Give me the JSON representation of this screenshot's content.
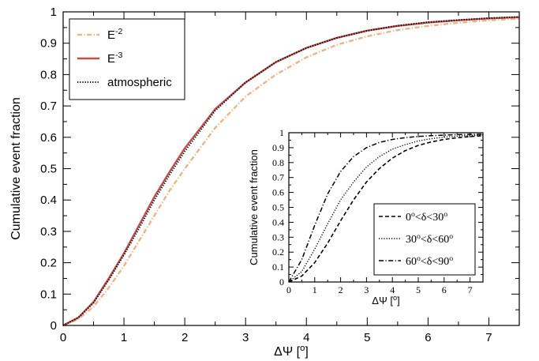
{
  "chart_data": [
    {
      "type": "line",
      "xlabel": "ΔΨ [o]",
      "ylabel": "Cumulative event fraction",
      "xlim": [
        0,
        7.5
      ],
      "ylim": [
        0,
        1
      ],
      "xticks": [
        "0",
        "1",
        "2",
        "3",
        "4",
        "5",
        "6",
        "7"
      ],
      "yticks": [
        "0",
        "0.1",
        "0.2",
        "0.3",
        "0.4",
        "0.5",
        "0.6",
        "0.7",
        "0.8",
        "0.9",
        "1"
      ],
      "legend_position": "top-left",
      "series": [
        {
          "name": "E-2",
          "style": "dash-dot",
          "color": "#e8b48a",
          "x": [
            0,
            0.25,
            0.5,
            0.75,
            1,
            1.25,
            1.5,
            1.75,
            2,
            2.5,
            3,
            3.5,
            4,
            4.5,
            5,
            5.5,
            6,
            6.5,
            7,
            7.5
          ],
          "y": [
            0,
            0.02,
            0.06,
            0.12,
            0.19,
            0.27,
            0.35,
            0.43,
            0.5,
            0.63,
            0.73,
            0.8,
            0.855,
            0.895,
            0.922,
            0.942,
            0.955,
            0.965,
            0.973,
            0.978
          ]
        },
        {
          "name": "E-3",
          "style": "solid",
          "color": "#c0504d",
          "x": [
            0,
            0.25,
            0.5,
            0.75,
            1,
            1.25,
            1.5,
            1.75,
            2,
            2.5,
            3,
            3.5,
            4,
            4.5,
            5,
            5.5,
            6,
            6.5,
            7,
            7.5
          ],
          "y": [
            0,
            0.025,
            0.075,
            0.15,
            0.23,
            0.32,
            0.41,
            0.49,
            0.565,
            0.69,
            0.775,
            0.84,
            0.885,
            0.917,
            0.94,
            0.955,
            0.966,
            0.973,
            0.979,
            0.983
          ]
        },
        {
          "name": "atmospheric",
          "style": "dotted",
          "color": "#000000",
          "x": [
            0,
            0.25,
            0.5,
            0.75,
            1,
            1.25,
            1.5,
            1.75,
            2,
            2.5,
            3,
            3.5,
            4,
            4.5,
            5,
            5.5,
            6,
            6.5,
            7,
            7.5
          ],
          "y": [
            0,
            0.025,
            0.072,
            0.145,
            0.225,
            0.31,
            0.4,
            0.48,
            0.555,
            0.685,
            0.775,
            0.84,
            0.885,
            0.917,
            0.94,
            0.956,
            0.967,
            0.974,
            0.98,
            0.984
          ]
        }
      ]
    },
    {
      "type": "line",
      "xlabel": "ΔΨ [o]",
      "ylabel": "Cumulative event fraction",
      "xlim": [
        0,
        7.5
      ],
      "ylim": [
        0,
        1
      ],
      "xticks": [
        "0",
        "1",
        "2",
        "3",
        "4",
        "5",
        "6",
        "7"
      ],
      "yticks": [
        "0",
        "0.1",
        "0.2",
        "0.3",
        "0.4",
        "0.5",
        "0.6",
        "0.7",
        "0.8",
        "0.9",
        "1"
      ],
      "legend_position": "bottom-right",
      "series": [
        {
          "name": "0o<δ<30o",
          "style": "dashed",
          "color": "#000000",
          "x": [
            0,
            0.5,
            1,
            1.5,
            2,
            2.5,
            3,
            3.5,
            4,
            4.5,
            5,
            5.5,
            6,
            6.5,
            7,
            7.5
          ],
          "y": [
            0,
            0.04,
            0.13,
            0.26,
            0.41,
            0.55,
            0.67,
            0.76,
            0.83,
            0.88,
            0.915,
            0.938,
            0.955,
            0.966,
            0.974,
            0.98
          ]
        },
        {
          "name": "30o<δ<60o",
          "style": "dotted",
          "color": "#000000",
          "x": [
            0,
            0.5,
            1,
            1.5,
            2,
            2.5,
            3,
            3.5,
            4,
            4.5,
            5,
            5.5,
            6,
            6.5,
            7,
            7.5
          ],
          "y": [
            0,
            0.07,
            0.22,
            0.39,
            0.55,
            0.67,
            0.77,
            0.84,
            0.89,
            0.92,
            0.945,
            0.96,
            0.97,
            0.977,
            0.982,
            0.985
          ]
        },
        {
          "name": "60o<δ<90o",
          "style": "dash-dot",
          "color": "#000000",
          "x": [
            0,
            0.5,
            1,
            1.5,
            2,
            2.5,
            3,
            3.5,
            4,
            4.5,
            5,
            5.5,
            6,
            6.5,
            7,
            7.5
          ],
          "y": [
            0,
            0.15,
            0.38,
            0.59,
            0.74,
            0.84,
            0.9,
            0.935,
            0.955,
            0.967,
            0.975,
            0.98,
            0.984,
            0.987,
            0.989,
            0.99
          ]
        }
      ]
    }
  ]
}
